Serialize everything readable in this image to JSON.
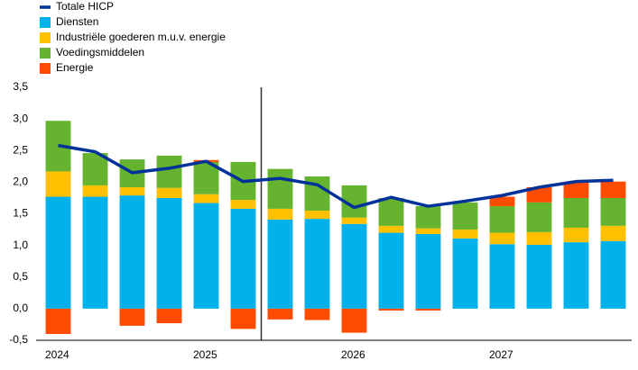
{
  "chart_data": {
    "type": "bar",
    "categories": [
      "2024",
      null,
      null,
      null,
      "2025",
      null,
      null,
      null,
      "2026",
      null,
      null,
      null,
      "2027",
      null,
      null,
      null
    ],
    "series": [
      {
        "name": "Totale HICP",
        "type": "line",
        "color": "#003299",
        "values": [
          2.58,
          2.48,
          2.15,
          2.22,
          2.33,
          2.01,
          2.06,
          1.96,
          1.6,
          1.76,
          1.62,
          1.7,
          1.79,
          1.92,
          2.01,
          2.03
        ]
      },
      {
        "name": "Diensten",
        "color": "#00b1ea",
        "values": [
          1.77,
          1.77,
          1.79,
          1.75,
          1.67,
          1.58,
          1.41,
          1.42,
          1.34,
          1.2,
          1.18,
          1.11,
          1.02,
          1.01,
          1.05,
          1.07
        ]
      },
      {
        "name": "Industriële goederen m.u.v. energie",
        "color": "#ffc000",
        "values": [
          0.4,
          0.18,
          0.13,
          0.16,
          0.14,
          0.14,
          0.17,
          0.13,
          0.1,
          0.11,
          0.09,
          0.14,
          0.18,
          0.2,
          0.23,
          0.24
        ]
      },
      {
        "name": "Voedingsmiddelen",
        "color": "#65b32e",
        "values": [
          0.8,
          0.51,
          0.44,
          0.51,
          0.51,
          0.6,
          0.63,
          0.54,
          0.51,
          0.44,
          0.35,
          0.43,
          0.42,
          0.47,
          0.47,
          0.44
        ]
      },
      {
        "name": "Energie",
        "color": "#ff4b00",
        "values": [
          -0.4,
          0,
          -0.27,
          -0.23,
          0.03,
          -0.32,
          -0.17,
          -0.18,
          -0.38,
          -0.03,
          -0.03,
          0,
          0.15,
          0.24,
          0.24,
          0.26
        ]
      }
    ],
    "ylim": [
      -0.5,
      3.5
    ],
    "yticks": [
      {
        "value": -0.5,
        "label": "-0,5"
      },
      {
        "value": 0,
        "label": "0,0"
      },
      {
        "value": 0.5,
        "label": "0,5"
      },
      {
        "value": 1,
        "label": "1,0"
      },
      {
        "value": 1.5,
        "label": "1,5"
      },
      {
        "value": 2,
        "label": "2,0"
      },
      {
        "value": 2.5,
        "label": "2,5"
      },
      {
        "value": 3,
        "label": "3,0"
      },
      {
        "value": 3.5,
        "label": "3,5"
      }
    ],
    "grid": false
  }
}
